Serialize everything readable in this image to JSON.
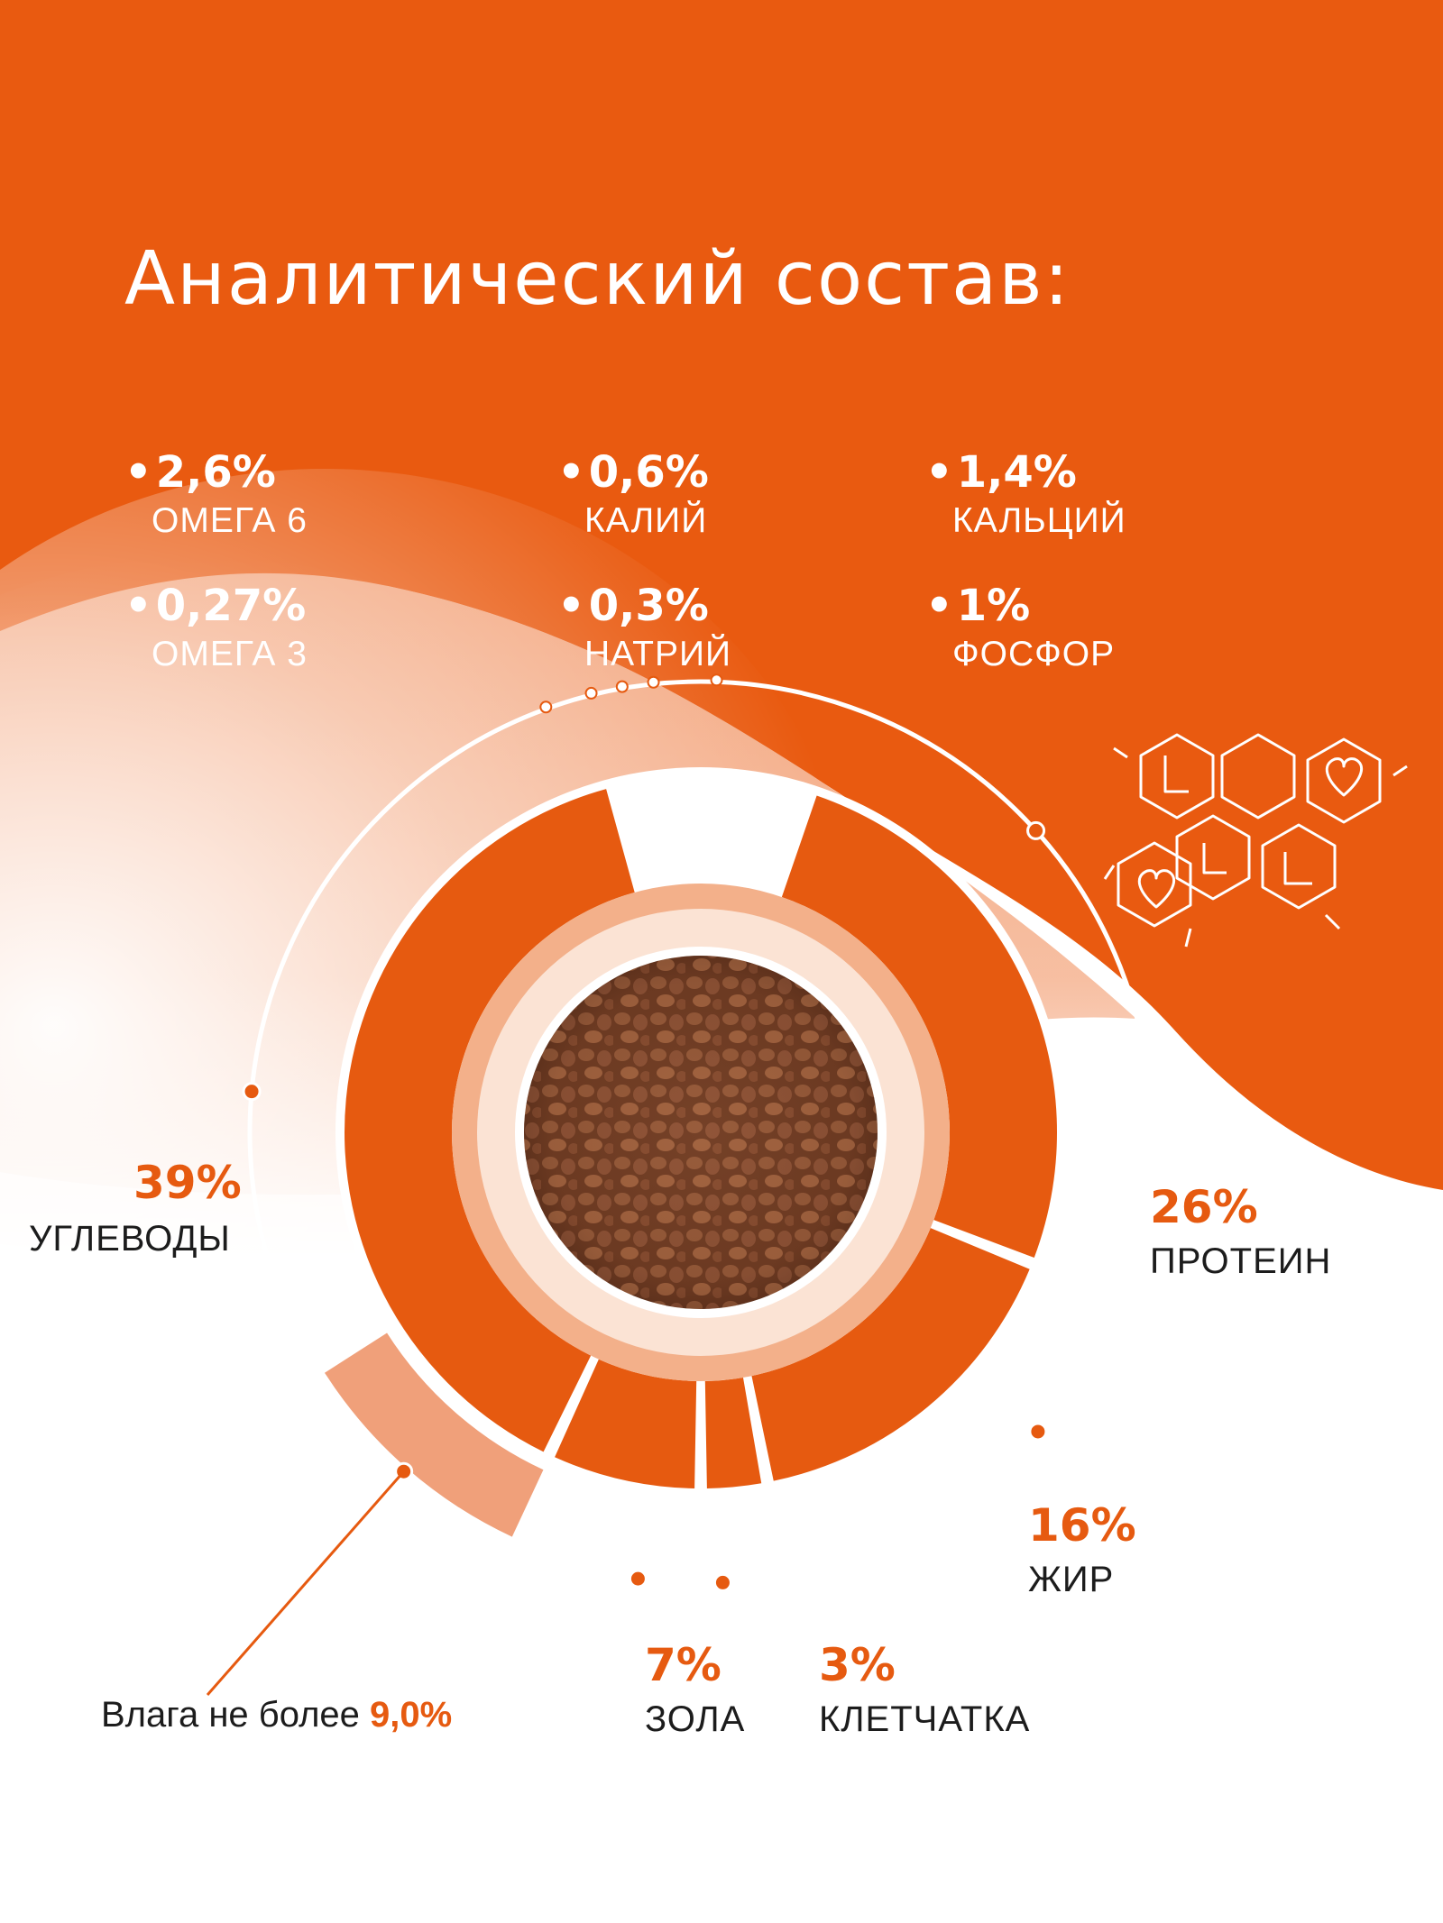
{
  "title": "Аналитический состав:",
  "stats": [
    {
      "value": "2,6%",
      "label": "ОМЕГА 6"
    },
    {
      "value": "0,6%",
      "label": "КАЛИЙ"
    },
    {
      "value": "1,4%",
      "label": "КАЛЬЦИЙ"
    },
    {
      "value": "0,27%",
      "label": "ОМЕГА 3"
    },
    {
      "value": "0,3%",
      "label": "НАТРИЙ"
    },
    {
      "value": "1%",
      "label": "ФОСФОР"
    }
  ],
  "chart_data": {
    "type": "pie",
    "categories": [
      "ПРОТЕИН",
      "ЖИР",
      "КЛЕТЧАТКА",
      "ЗОЛА",
      "УГЛЕВОДЫ"
    ],
    "values": [
      26,
      16,
      3,
      7,
      39
    ],
    "labels": [
      "26%",
      "16%",
      "3%",
      "7%",
      "39%"
    ],
    "moisture": {
      "text": "Влага не более",
      "value": "9,0%",
      "percent": 9.0
    }
  },
  "colors": {
    "accent": "#e65a10",
    "light_accent": "#f0a07a",
    "background_orange": "#e95a10"
  },
  "icons": [
    "molecule-heart-icon",
    "kibble-photo"
  ]
}
